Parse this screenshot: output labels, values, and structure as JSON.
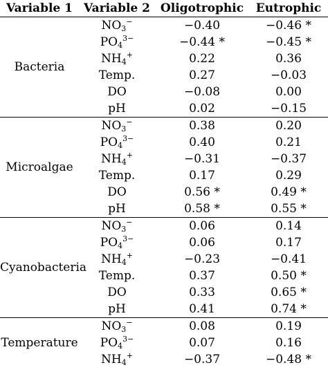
{
  "table": {
    "columns": [
      "Variable 1",
      "Variable 2",
      "Oligotrophic",
      "Eutrophic"
    ],
    "groups": [
      {
        "name": "Bacteria",
        "rows": [
          {
            "var": "NO3−",
            "oligo": "−0.40",
            "eutro": "−0.46 *"
          },
          {
            "var": "PO43−",
            "oligo": "−0.44 *",
            "eutro": "−0.45 *"
          },
          {
            "var": "NH4+",
            "oligo": "0.22",
            "eutro": "0.36"
          },
          {
            "var": "Temp.",
            "oligo": "0.27",
            "eutro": "−0.03"
          },
          {
            "var": "DO",
            "oligo": "−0.08",
            "eutro": "0.00"
          },
          {
            "var": "pH",
            "oligo": "0.02",
            "eutro": "−0.15"
          }
        ]
      },
      {
        "name": "Microalgae",
        "rows": [
          {
            "var": "NO3−",
            "oligo": "0.38",
            "eutro": "0.20"
          },
          {
            "var": "PO43−",
            "oligo": "0.40",
            "eutro": "0.21"
          },
          {
            "var": "NH4+",
            "oligo": "−0.31",
            "eutro": "−0.37"
          },
          {
            "var": "Temp.",
            "oligo": "0.17",
            "eutro": "0.29"
          },
          {
            "var": "DO",
            "oligo": "0.56 *",
            "eutro": "0.49 *"
          },
          {
            "var": "pH",
            "oligo": "0.58 *",
            "eutro": "0.55 *"
          }
        ]
      },
      {
        "name": "Cyanobacteria",
        "rows": [
          {
            "var": "NO3−",
            "oligo": "0.06",
            "eutro": "0.14"
          },
          {
            "var": "PO43−",
            "oligo": "0.06",
            "eutro": "0.17"
          },
          {
            "var": "NH4+",
            "oligo": "−0.23",
            "eutro": "−0.41"
          },
          {
            "var": "Temp.",
            "oligo": "0.37",
            "eutro": "0.50 *"
          },
          {
            "var": "DO",
            "oligo": "0.33",
            "eutro": "0.65 *"
          },
          {
            "var": "pH",
            "oligo": "0.41",
            "eutro": "0.74 *"
          }
        ]
      },
      {
        "name": "Temperature",
        "rows": [
          {
            "var": "NO3−",
            "oligo": "0.08",
            "eutro": "0.19"
          },
          {
            "var": "PO43−",
            "oligo": "0.07",
            "eutro": "0.16"
          },
          {
            "var": "NH4+",
            "oligo": "−0.37",
            "eutro": "−0.48 *"
          }
        ]
      }
    ]
  }
}
